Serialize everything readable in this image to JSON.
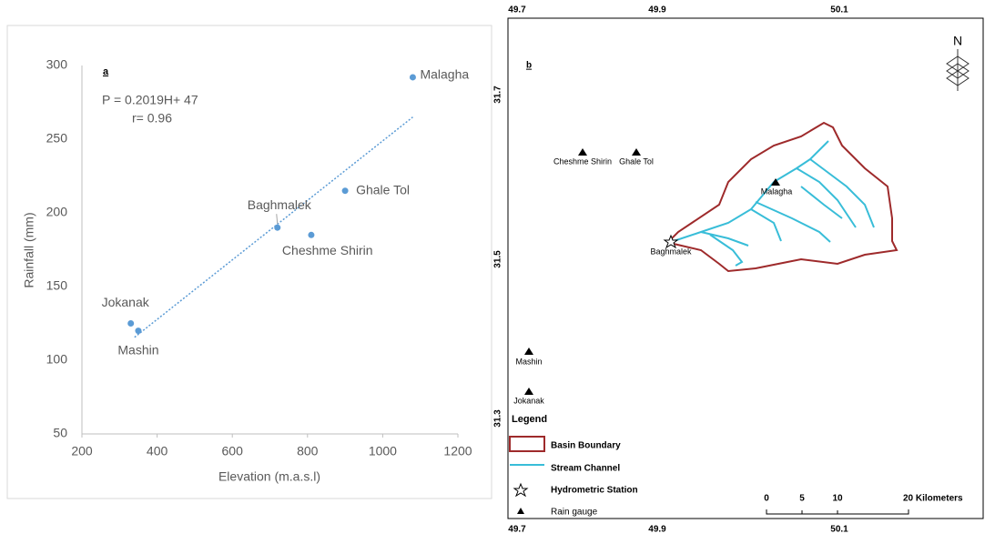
{
  "chart_data": {
    "type": "scatter",
    "panel_label": "a",
    "equation": "P = 0.2019H+ 47",
    "correlation": "r= 0.96",
    "x_label": "Elevation (m.a.s.l)",
    "y_label": "Rainfall (mm)",
    "point_labels": [
      "Malagha",
      "Ghale Tol",
      "Cheshme Shirin",
      "Baghmalek",
      "Jokanak",
      "Mashin"
    ],
    "x": [
      1080,
      900,
      810,
      720,
      330,
      350
    ],
    "values": [
      292,
      215,
      185,
      190,
      125,
      120
    ],
    "color": "#5b9bd5",
    "trendline": {
      "x": [
        340,
        1080
      ],
      "y": [
        115.6,
        265
      ]
    },
    "xlim": [
      200,
      1200
    ],
    "xticks": [
      200,
      400,
      600,
      800,
      1000,
      1200
    ],
    "ylim": [
      50,
      300
    ],
    "yticks": [
      50,
      100,
      150,
      200,
      250,
      300
    ]
  },
  "map": {
    "panel_label": "b",
    "lon_ticks": [
      "49.7",
      "49.9",
      "50.1"
    ],
    "lat_ticks": [
      "31.7",
      "31.5",
      "31.3"
    ],
    "north": "N",
    "gauges": [
      "Cheshme Shirin",
      "Ghale Tol",
      "Malagha",
      "Baghmalek",
      "Mashin",
      "Jokanak"
    ],
    "legend": {
      "title": "Legend",
      "items": [
        "Basin Boundary",
        "Stream Channel",
        "Hydrometric Station",
        "Rain gauge"
      ]
    },
    "scale": [
      "0",
      "5",
      "10",
      "20 Kilometers"
    ]
  }
}
